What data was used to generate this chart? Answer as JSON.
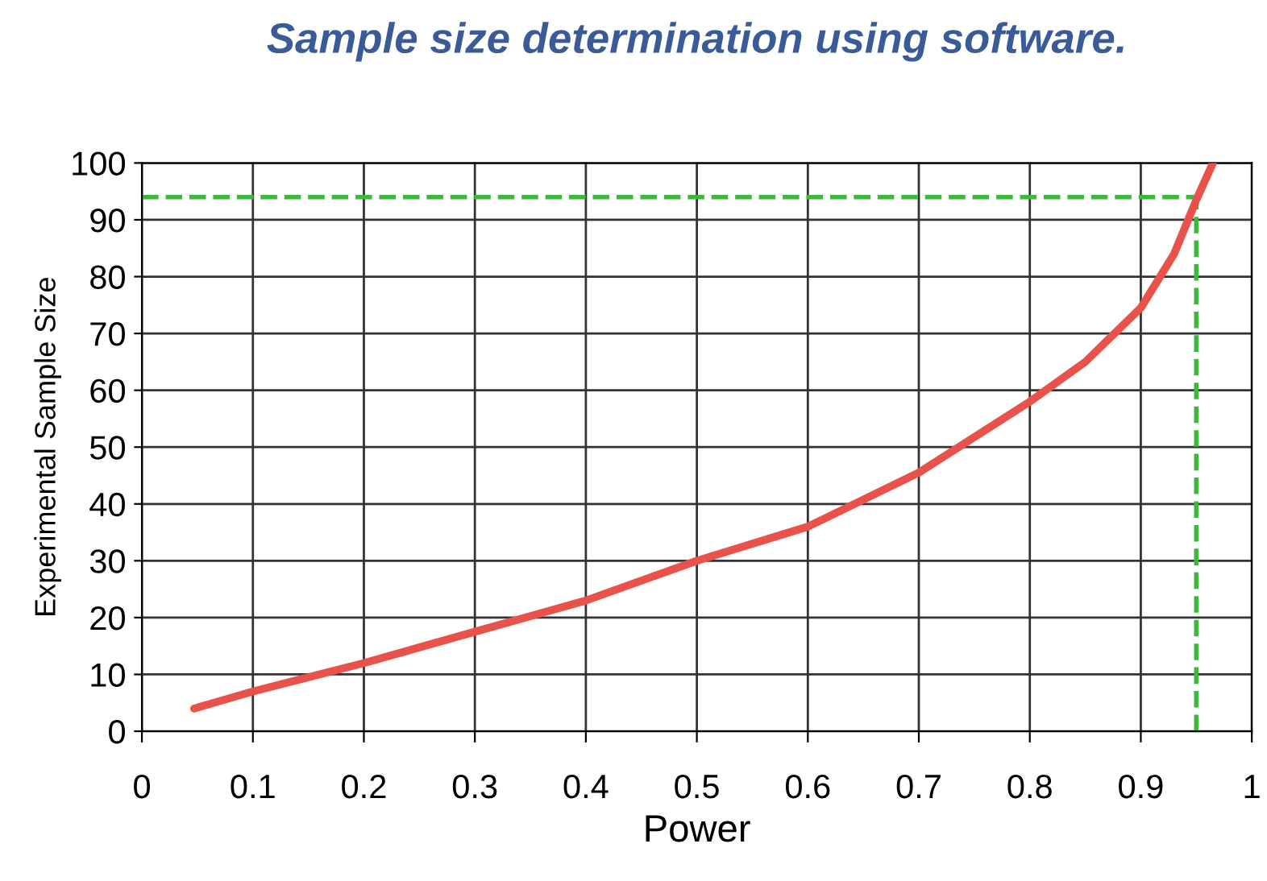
{
  "chart_data": {
    "type": "line",
    "title": "Sample size determination using software.",
    "xlabel": "Power",
    "ylabel": "Experimental Sample Size",
    "series": [
      {
        "color": "#e8524a",
        "x": [
          0.047,
          0.1,
          0.15,
          0.2,
          0.3,
          0.4,
          0.5,
          0.6,
          0.7,
          0.8,
          0.85,
          0.9,
          0.93,
          0.95,
          0.965
        ],
        "values": [
          4,
          7,
          9.5,
          12,
          17.5,
          23,
          30,
          36,
          45.5,
          58,
          65,
          74.5,
          84,
          93.5,
          100
        ]
      }
    ],
    "xlim": [
      0,
      1
    ],
    "ylim": [
      0,
      100
    ],
    "xticks": [
      0,
      0.1,
      0.2,
      0.3,
      0.4,
      0.5,
      0.6,
      0.7,
      0.8,
      0.9,
      1
    ],
    "yticks": [
      0,
      10,
      20,
      30,
      40,
      50,
      60,
      70,
      80,
      90,
      100
    ],
    "grid": true,
    "marker": "none",
    "line_style": "solid",
    "ref_lines": [
      {
        "axis": "y",
        "value": 94,
        "color": "#3cb83c",
        "line_style": "dashed"
      },
      {
        "axis": "x",
        "value": 0.95,
        "color": "#3cb83c",
        "line_style": "dashed"
      }
    ]
  }
}
